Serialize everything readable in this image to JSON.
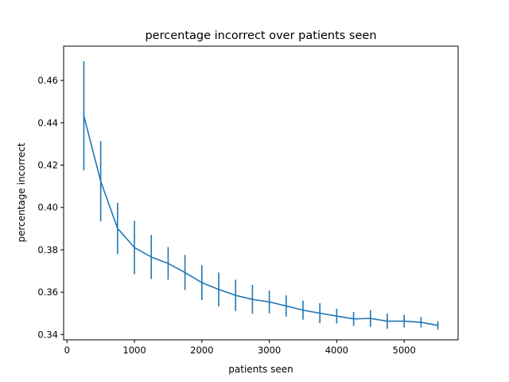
{
  "chart_data": {
    "type": "line",
    "title": "percentage incorrect over patients seen",
    "xlabel": "patients seen",
    "ylabel": "percentage incorrect",
    "xlim": [
      -50,
      5800
    ],
    "ylim": [
      0.3375,
      0.4762
    ],
    "xticks": [
      0,
      1000,
      2000,
      3000,
      4000,
      5000
    ],
    "xtick_labels": [
      "0",
      "1000",
      "2000",
      "3000",
      "4000",
      "5000"
    ],
    "yticks": [
      0.34,
      0.36,
      0.38,
      0.4,
      0.42,
      0.44,
      0.46
    ],
    "ytick_labels": [
      "0.34",
      "0.36",
      "0.38",
      "0.40",
      "0.42",
      "0.44",
      "0.46"
    ],
    "grid": false,
    "color": "#1f77b4",
    "series": [
      {
        "x": [
          250,
          500,
          750,
          1000,
          1250,
          1500,
          1750,
          2000,
          2250,
          2500,
          2750,
          3000,
          3250,
          3500,
          3750,
          4000,
          4250,
          4500,
          4750,
          5000,
          5250,
          5500
        ],
        "y": [
          0.4433,
          0.4124,
          0.3901,
          0.3811,
          0.3766,
          0.3736,
          0.3693,
          0.3645,
          0.3613,
          0.3585,
          0.3566,
          0.3554,
          0.3535,
          0.3515,
          0.3501,
          0.3487,
          0.3474,
          0.3476,
          0.3463,
          0.3463,
          0.3458,
          0.3443
        ],
        "err": [
          0.0258,
          0.019,
          0.0121,
          0.0126,
          0.0104,
          0.0077,
          0.0083,
          0.0082,
          0.008,
          0.0074,
          0.0068,
          0.0054,
          0.005,
          0.0045,
          0.0047,
          0.0035,
          0.0033,
          0.004,
          0.0036,
          0.003,
          0.0025,
          0.002
        ]
      }
    ]
  }
}
